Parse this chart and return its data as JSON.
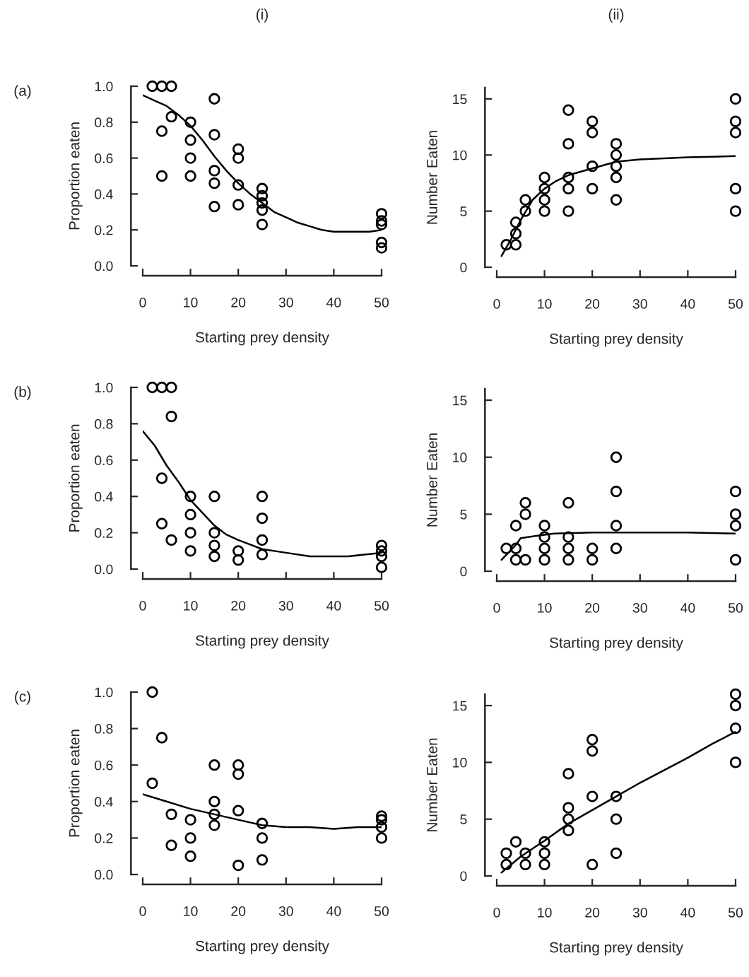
{
  "chart_data": [
    {
      "type": "scatter",
      "ylabel": "Proportion eaten",
      "xlabel": "Starting prey density",
      "annotations": [
        "(i)",
        "(a)"
      ],
      "xlim": [
        0,
        50
      ],
      "xticks": [
        0,
        10,
        20,
        30,
        40,
        50
      ],
      "ylim": [
        0,
        1.0
      ],
      "yticks": [
        {
          "value": 0,
          "label": "0.0"
        },
        {
          "value": 0.2,
          "label": "0.2"
        },
        {
          "value": 0.4,
          "label": "0.4"
        },
        {
          "value": 0.6,
          "label": "0.6"
        },
        {
          "value": 0.8,
          "label": "0.8"
        },
        {
          "value": 1.0,
          "label": "1.0"
        }
      ],
      "series": [
        {
          "marker": "circle",
          "color": "#000000",
          "x": [
            2,
            4,
            4,
            4,
            6,
            6,
            10,
            10,
            10,
            10,
            15,
            15,
            15,
            15,
            15,
            20,
            20,
            20,
            20,
            25,
            25,
            25,
            25,
            25,
            50,
            50,
            50,
            50,
            50
          ],
          "values": [
            1.0,
            1.0,
            0.75,
            0.5,
            1.0,
            0.83,
            0.8,
            0.7,
            0.6,
            0.5,
            0.93,
            0.73,
            0.53,
            0.46,
            0.33,
            0.65,
            0.6,
            0.45,
            0.34,
            0.43,
            0.39,
            0.35,
            0.31,
            0.23,
            0.29,
            0.25,
            0.23,
            0.13,
            0.1
          ]
        },
        {
          "type": "line",
          "line_style": "solid",
          "color": "#000000",
          "x": [
            0,
            2.5,
            5,
            7.5,
            10,
            12.5,
            15,
            17.5,
            20,
            22.5,
            25,
            27.5,
            30,
            32.5,
            35,
            37.5,
            40,
            43,
            45,
            47.5,
            50
          ],
          "values": [
            0.95,
            0.92,
            0.89,
            0.84,
            0.78,
            0.7,
            0.61,
            0.53,
            0.46,
            0.4,
            0.35,
            0.3,
            0.27,
            0.24,
            0.22,
            0.2,
            0.19,
            0.19,
            0.19,
            0.19,
            0.2
          ]
        }
      ]
    },
    {
      "type": "scatter",
      "ylabel": "Number Eaten",
      "xlabel": "Starting prey density",
      "annotations": [
        "(ii)"
      ],
      "xlim": [
        0,
        50
      ],
      "xticks": [
        0,
        10,
        20,
        30,
        40,
        50
      ],
      "ylim": [
        0,
        16
      ],
      "yticks": [
        0,
        5,
        10,
        15
      ],
      "series": [
        {
          "marker": "circle",
          "color": "#000000",
          "x": [
            2,
            4,
            4,
            4,
            6,
            6,
            10,
            10,
            10,
            10,
            15,
            15,
            15,
            15,
            15,
            20,
            20,
            20,
            20,
            25,
            25,
            25,
            25,
            25,
            50,
            50,
            50,
            50,
            50
          ],
          "values": [
            2,
            4,
            3,
            2,
            6,
            5,
            8,
            7,
            6,
            5,
            14,
            11,
            8,
            7,
            5,
            13,
            12,
            9,
            7,
            11,
            10,
            9,
            8,
            6,
            15,
            13,
            12,
            7,
            5
          ]
        },
        {
          "type": "line",
          "line_style": "solid",
          "color": "#000000",
          "x": [
            1,
            3,
            5,
            7.5,
            10,
            12.5,
            15,
            20,
            25,
            30,
            40,
            50
          ],
          "values": [
            1.0,
            2.5,
            4.2,
            6.0,
            7.0,
            7.7,
            8.2,
            8.8,
            9.4,
            9.6,
            9.8,
            9.9
          ]
        }
      ]
    },
    {
      "type": "scatter",
      "ylabel": "Proportion eaten",
      "xlabel": "Starting prey density",
      "annotations": [
        "(b)"
      ],
      "xlim": [
        0,
        50
      ],
      "xticks": [
        0,
        10,
        20,
        30,
        40,
        50
      ],
      "ylim": [
        0,
        1.0
      ],
      "yticks": [
        {
          "value": 0,
          "label": "0.0"
        },
        {
          "value": 0.2,
          "label": "0.2"
        },
        {
          "value": 0.4,
          "label": "0.4"
        },
        {
          "value": 0.6,
          "label": "0.6"
        },
        {
          "value": 0.8,
          "label": "0.8"
        },
        {
          "value": 1.0,
          "label": "1.0"
        }
      ],
      "series": [
        {
          "marker": "circle",
          "color": "#000000",
          "x": [
            2,
            4,
            4,
            4,
            6,
            6,
            6,
            10,
            10,
            10,
            10,
            15,
            15,
            15,
            15,
            20,
            20,
            25,
            25,
            25,
            25,
            50,
            50,
            50,
            50
          ],
          "values": [
            1.0,
            1.0,
            0.5,
            0.25,
            1.0,
            0.84,
            0.16,
            0.4,
            0.3,
            0.2,
            0.1,
            0.4,
            0.2,
            0.13,
            0.07,
            0.1,
            0.05,
            0.4,
            0.28,
            0.16,
            0.08,
            0.13,
            0.1,
            0.07,
            0.01
          ]
        },
        {
          "type": "line",
          "line_style": "solid",
          "color": "#000000",
          "x": [
            0,
            2.5,
            5,
            7.5,
            10,
            12.5,
            15,
            17.5,
            20,
            25,
            30,
            35,
            43,
            50
          ],
          "values": [
            0.76,
            0.68,
            0.57,
            0.48,
            0.38,
            0.31,
            0.24,
            0.19,
            0.16,
            0.11,
            0.09,
            0.07,
            0.07,
            0.09
          ]
        }
      ]
    },
    {
      "type": "scatter",
      "ylabel": "Number Eaten",
      "xlabel": "Starting prey density",
      "xlim": [
        0,
        50
      ],
      "xticks": [
        0,
        10,
        20,
        30,
        40,
        50
      ],
      "ylim": [
        0,
        16
      ],
      "yticks": [
        0,
        5,
        10,
        15
      ],
      "series": [
        {
          "marker": "circle",
          "color": "#000000",
          "x": [
            2,
            4,
            4,
            4,
            6,
            6,
            6,
            10,
            10,
            10,
            10,
            15,
            15,
            15,
            15,
            20,
            20,
            25,
            25,
            25,
            25,
            50,
            50,
            50,
            50
          ],
          "values": [
            2,
            4,
            2,
            1,
            6,
            5,
            1,
            4,
            3,
            2,
            1,
            6,
            3,
            2,
            1,
            2,
            1,
            10,
            7,
            4,
            2,
            7,
            5,
            4,
            1
          ]
        },
        {
          "type": "line",
          "line_style": "solid",
          "color": "#000000",
          "x": [
            1,
            4,
            5,
            10,
            12,
            20,
            25,
            30,
            40,
            50
          ],
          "values": [
            1.0,
            2.3,
            2.9,
            3.2,
            3.3,
            3.4,
            3.4,
            3.4,
            3.4,
            3.3
          ]
        }
      ]
    },
    {
      "type": "scatter",
      "ylabel": "Proportion eaten",
      "xlabel": "Starting prey density",
      "annotations": [
        "(c)"
      ],
      "xlim": [
        0,
        50
      ],
      "xticks": [
        0,
        10,
        20,
        30,
        40,
        50
      ],
      "ylim": [
        0,
        1.0
      ],
      "yticks": [
        {
          "value": 0,
          "label": "0.0"
        },
        {
          "value": 0.2,
          "label": "0.2"
        },
        {
          "value": 0.4,
          "label": "0.4"
        },
        {
          "value": 0.6,
          "label": "0.6"
        },
        {
          "value": 0.8,
          "label": "0.8"
        },
        {
          "value": 1.0,
          "label": "1.0"
        }
      ],
      "series": [
        {
          "marker": "circle",
          "color": "#000000",
          "x": [
            2,
            2,
            4,
            6,
            6,
            10,
            10,
            10,
            15,
            15,
            15,
            15,
            20,
            20,
            20,
            20,
            25,
            25,
            25,
            50,
            50,
            50,
            50
          ],
          "values": [
            1.0,
            0.5,
            0.75,
            0.33,
            0.16,
            0.3,
            0.2,
            0.1,
            0.6,
            0.4,
            0.33,
            0.27,
            0.6,
            0.55,
            0.35,
            0.05,
            0.28,
            0.2,
            0.08,
            0.32,
            0.3,
            0.26,
            0.2
          ]
        },
        {
          "type": "line",
          "line_style": "solid",
          "color": "#000000",
          "x": [
            0,
            5,
            10,
            15,
            20,
            25,
            30,
            35,
            40,
            45,
            50
          ],
          "values": [
            0.44,
            0.4,
            0.36,
            0.33,
            0.3,
            0.27,
            0.26,
            0.26,
            0.25,
            0.26,
            0.26
          ]
        }
      ]
    },
    {
      "type": "scatter",
      "ylabel": "Number Eaten",
      "xlabel": "Starting prey density",
      "xlim": [
        0,
        50
      ],
      "xticks": [
        0,
        10,
        20,
        30,
        40,
        50
      ],
      "ylim": [
        0,
        16
      ],
      "yticks": [
        0,
        5,
        10,
        15
      ],
      "series": [
        {
          "marker": "circle",
          "color": "#000000",
          "x": [
            2,
            2,
            4,
            6,
            6,
            10,
            10,
            10,
            15,
            15,
            15,
            15,
            20,
            20,
            20,
            20,
            25,
            25,
            25,
            50,
            50,
            50,
            50
          ],
          "values": [
            2,
            1,
            3,
            2,
            1,
            3,
            2,
            1,
            9,
            6,
            5,
            4,
            12,
            11,
            7,
            1,
            7,
            5,
            2,
            16,
            15,
            13,
            10
          ]
        },
        {
          "type": "line",
          "line_style": "solid",
          "color": "#000000",
          "x": [
            1,
            5,
            10,
            15,
            20,
            25,
            30,
            35,
            40,
            45,
            50
          ],
          "values": [
            0.3,
            1.7,
            3.1,
            4.6,
            5.8,
            7.0,
            8.2,
            9.3,
            10.4,
            11.6,
            12.7
          ]
        }
      ]
    }
  ]
}
